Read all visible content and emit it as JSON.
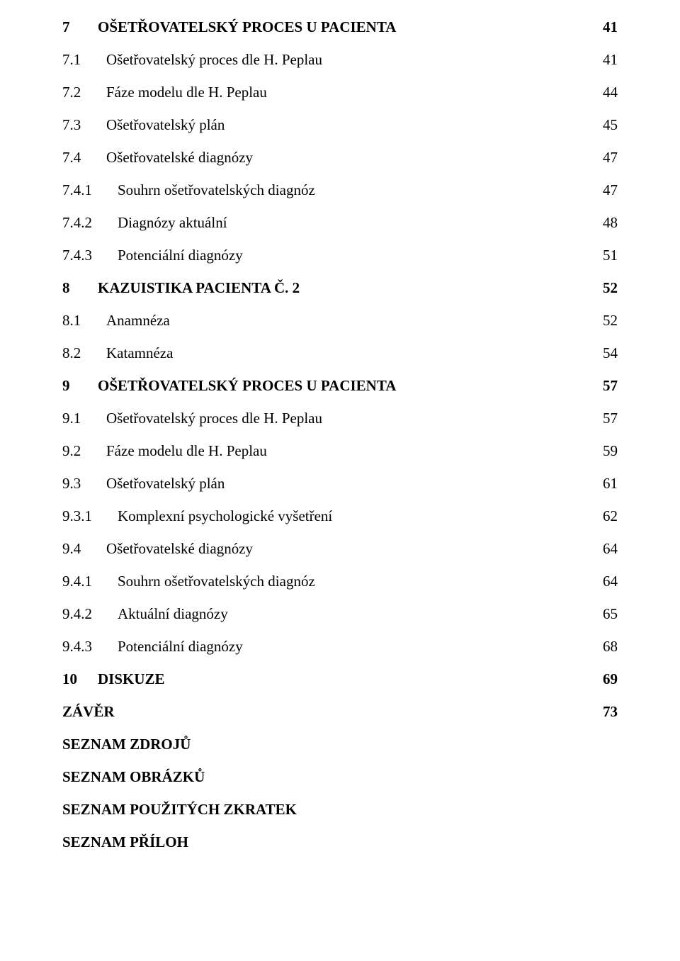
{
  "text_color": "#000000",
  "background_color": "#ffffff",
  "font_family": "Times New Roman",
  "base_fontsize_pt": 16,
  "toc": [
    {
      "num": "7",
      "title": "OŠETŘOVATELSKÝ PROCES U PACIENTA",
      "page": "41",
      "level": 1,
      "bold": true
    },
    {
      "num": "7.1",
      "title": "Ošetřovatelský proces dle H. Peplau",
      "page": "41",
      "level": 2,
      "bold": false,
      "spaced": true
    },
    {
      "num": "7.2",
      "title": "Fáze modelu dle H. Peplau",
      "page": "44",
      "level": 2,
      "bold": false
    },
    {
      "num": "7.3",
      "title": "Ošetřovatelský plán",
      "page": "45",
      "level": 2,
      "bold": false
    },
    {
      "num": "7.4",
      "title": "Ošetřovatelské diagnózy",
      "page": "47",
      "level": 2,
      "bold": false
    },
    {
      "num": "7.4.1",
      "title": "Souhrn ošetřovatelských diagnóz",
      "page": "47",
      "level": 3,
      "bold": false
    },
    {
      "num": "7.4.2",
      "title": "Diagnózy aktuální",
      "page": "48",
      "level": 3,
      "bold": false
    },
    {
      "num": "7.4.3",
      "title": "Potenciální diagnózy",
      "page": "51",
      "level": 3,
      "bold": false
    },
    {
      "num": "8",
      "title": "KAZUISTIKA PACIENTA Č. 2",
      "page": "52",
      "level": 1,
      "bold": true
    },
    {
      "num": "8.1",
      "title": "Anamnéza",
      "page": "52",
      "level": 2,
      "bold": false,
      "spaced": true
    },
    {
      "num": "8.2",
      "title": "Katamnéza",
      "page": "54",
      "level": 2,
      "bold": false
    },
    {
      "num": "9",
      "title": "OŠETŘOVATELSKÝ PROCES U PACIENTA",
      "page": "57",
      "level": 1,
      "bold": true
    },
    {
      "num": "9.1",
      "title": "Ošetřovatelský proces dle H. Peplau",
      "page": "57",
      "level": 2,
      "bold": false,
      "spaced": true
    },
    {
      "num": "9.2",
      "title": "Fáze modelu dle H. Peplau",
      "page": "59",
      "level": 2,
      "bold": false
    },
    {
      "num": "9.3",
      "title": "Ošetřovatelský plán",
      "page": "61",
      "level": 2,
      "bold": false
    },
    {
      "num": "9.3.1",
      "title": "Komplexní psychologické vyšetření",
      "page": "62",
      "level": 3,
      "bold": false
    },
    {
      "num": "9.4",
      "title": "Ošetřovatelské diagnózy",
      "page": "64",
      "level": 2,
      "bold": false
    },
    {
      "num": "9.4.1",
      "title": "Souhrn ošetřovatelských diagnóz",
      "page": "64",
      "level": 3,
      "bold": false
    },
    {
      "num": "9.4.2",
      "title": "Aktuální diagnózy",
      "page": "65",
      "level": 3,
      "bold": false
    },
    {
      "num": "9.4.3",
      "title": "Potenciální diagnózy",
      "page": "68",
      "level": 3,
      "bold": false
    },
    {
      "num": "10",
      "title": "DISKUZE",
      "page": "69",
      "level": 1,
      "bold": true
    },
    {
      "num": "",
      "title": "ZÁVĚR",
      "page": "73",
      "level": 0,
      "bold": true,
      "spaced": true
    },
    {
      "num": "",
      "title": "SEZNAM ZDROJŮ",
      "page": "",
      "level": 0,
      "bold": true,
      "spaced": true
    },
    {
      "num": "",
      "title": "SEZNAM OBRÁZKŮ",
      "page": "",
      "level": 0,
      "bold": true,
      "spaced": true
    },
    {
      "num": "",
      "title": "SEZNAM POUŽITÝCH ZKRATEK",
      "page": "",
      "level": 0,
      "bold": true,
      "spaced": true
    },
    {
      "num": "",
      "title": "SEZNAM PŘÍLOH",
      "page": "",
      "level": 0,
      "bold": true,
      "spaced": true
    }
  ]
}
